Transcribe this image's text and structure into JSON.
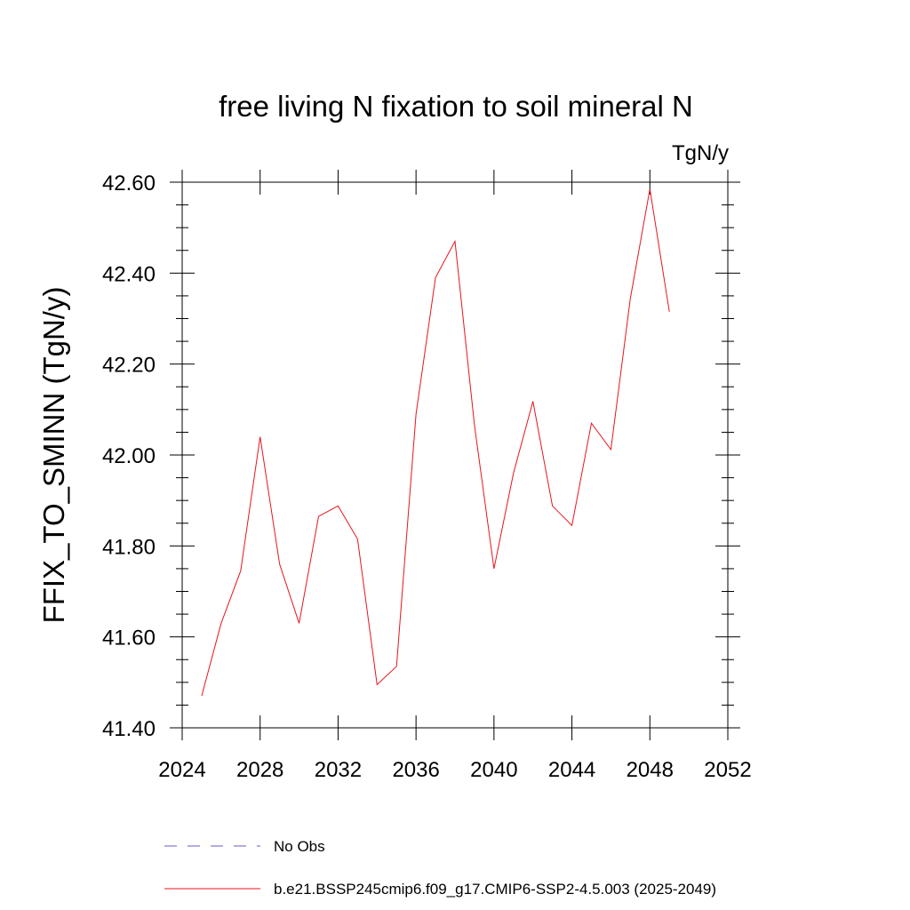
{
  "chart_data": {
    "type": "line",
    "title": "free living N fixation to soil mineral N",
    "units_label": "TgN/y",
    "xlabel": "",
    "ylabel": "FFIX_TO_SMINN  (TgN/y)",
    "xlim": [
      2024,
      2052
    ],
    "ylim": [
      41.4,
      42.6
    ],
    "x_ticks": [
      2024,
      2028,
      2032,
      2036,
      2040,
      2044,
      2048,
      2052
    ],
    "x_tick_labels": [
      "2024",
      "2028",
      "2032",
      "2036",
      "2040",
      "2044",
      "2048",
      "2052"
    ],
    "y_ticks": [
      41.4,
      41.6,
      41.8,
      42.0,
      42.2,
      42.4,
      42.6
    ],
    "y_tick_labels": [
      "41.40",
      "41.60",
      "41.80",
      "42.00",
      "42.20",
      "42.40",
      "42.60"
    ],
    "grid": false,
    "series": [
      {
        "name": "b.e21.BSSP245cmip6.f09_g17.CMIP6-SSP2-4.5.003 (2025-2049)",
        "color": "#e8141c",
        "x": [
          2025,
          2026,
          2027,
          2028,
          2029,
          2030,
          2031,
          2032,
          2033,
          2034,
          2035,
          2036,
          2037,
          2038,
          2039,
          2040,
          2041,
          2042,
          2043,
          2044,
          2045,
          2046,
          2047,
          2048,
          2049
        ],
        "values": [
          41.47,
          41.63,
          41.745,
          42.04,
          41.76,
          41.63,
          41.865,
          41.888,
          41.815,
          41.495,
          41.535,
          42.09,
          42.39,
          42.47,
          42.065,
          41.75,
          41.96,
          42.118,
          41.888,
          41.845,
          42.07,
          42.012,
          42.345,
          42.585,
          42.315
        ]
      }
    ],
    "legend": {
      "placement": "bottom-left",
      "entries": [
        {
          "label": "No Obs",
          "color": "#6a5acd",
          "style": "dashed"
        },
        {
          "label": "b.e21.BSSP245cmip6.f09_g17.CMIP6-SSP2-4.5.003 (2025-2049)",
          "color": "#e8141c",
          "style": "solid"
        }
      ]
    }
  }
}
